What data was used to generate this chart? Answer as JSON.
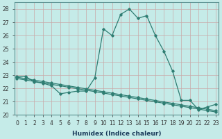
{
  "xlabel": "Humidex (Indice chaleur)",
  "bg_color": "#c5ebe8",
  "grid_color": "#aed8d5",
  "line_color": "#2e7d72",
  "curve_x": [
    0,
    1,
    2,
    3,
    4,
    5,
    6,
    7,
    8,
    9,
    10,
    11,
    12,
    13,
    14,
    15,
    16,
    17,
    18,
    19,
    20,
    21,
    22,
    23
  ],
  "curve_y": [
    22.9,
    22.9,
    22.5,
    22.4,
    22.2,
    21.6,
    21.7,
    21.8,
    21.8,
    22.8,
    26.5,
    26.0,
    27.6,
    28.0,
    27.3,
    27.5,
    26.0,
    24.8,
    23.3,
    21.1,
    21.1,
    20.4,
    20.6,
    20.8
  ],
  "line2_x": [
    0,
    1,
    2,
    3,
    4,
    5,
    6,
    7,
    8,
    9,
    10,
    11,
    12,
    13,
    14,
    15,
    16,
    17,
    18,
    19,
    20,
    21,
    22,
    23
  ],
  "line2_y": [
    22.75,
    22.64,
    22.53,
    22.42,
    22.31,
    22.2,
    22.09,
    21.98,
    21.87,
    21.76,
    21.65,
    21.54,
    21.43,
    21.32,
    21.21,
    21.1,
    20.99,
    20.88,
    20.77,
    20.66,
    20.55,
    20.44,
    20.33,
    20.22
  ],
  "line3_x": [
    0,
    1,
    2,
    3,
    4,
    5,
    6,
    7,
    8,
    9,
    10,
    11,
    12,
    13,
    14,
    15,
    16,
    17,
    18,
    19,
    20,
    21,
    22,
    23
  ],
  "line3_y": [
    22.85,
    22.74,
    22.63,
    22.52,
    22.41,
    22.3,
    22.19,
    22.08,
    21.97,
    21.86,
    21.75,
    21.64,
    21.53,
    21.42,
    21.31,
    21.2,
    21.09,
    20.98,
    20.87,
    20.76,
    20.65,
    20.54,
    20.43,
    20.32
  ],
  "ylim": [
    20,
    28.5
  ],
  "yticks": [
    20,
    21,
    22,
    23,
    24,
    25,
    26,
    27,
    28
  ],
  "xlim": [
    -0.3,
    23.3
  ],
  "xticks": [
    0,
    1,
    2,
    3,
    4,
    5,
    6,
    7,
    8,
    9,
    10,
    11,
    12,
    13,
    14,
    15,
    16,
    17,
    18,
    19,
    20,
    21,
    22,
    23
  ],
  "tick_fontsize": 5.5,
  "xlabel_fontsize": 6.5
}
